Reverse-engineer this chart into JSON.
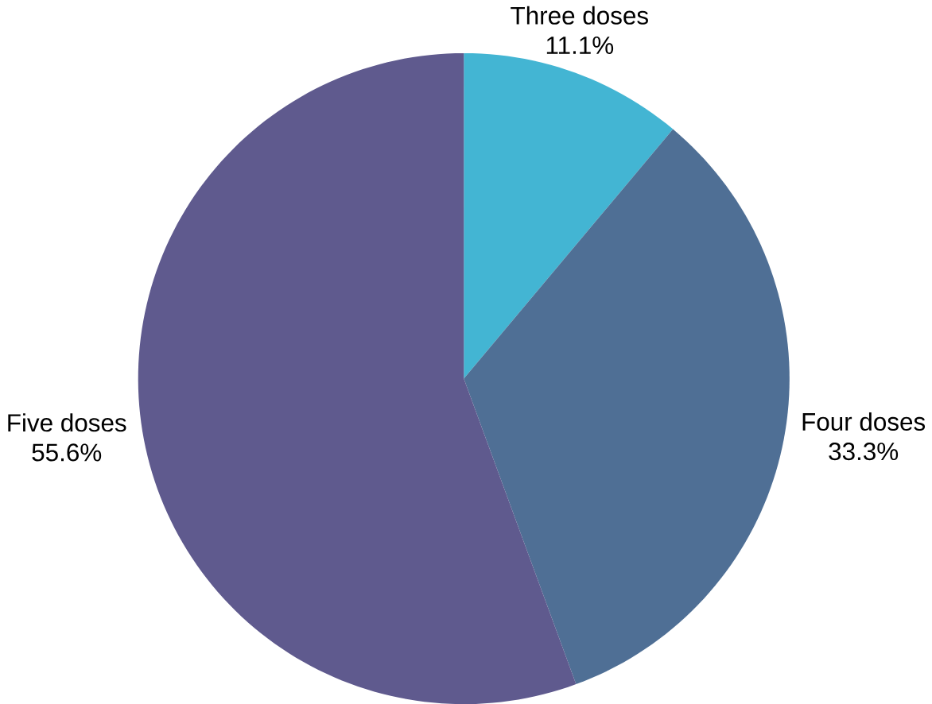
{
  "chart_data": {
    "type": "pie",
    "categories": [
      "Three doses",
      "Four doses",
      "Five doses"
    ],
    "values": [
      11.1,
      33.3,
      55.6
    ],
    "colors": [
      "#43b5d3",
      "#4f6f95",
      "#5f5a8e"
    ],
    "value_labels": [
      "11.1%",
      "33.3%",
      "55.6%"
    ]
  }
}
